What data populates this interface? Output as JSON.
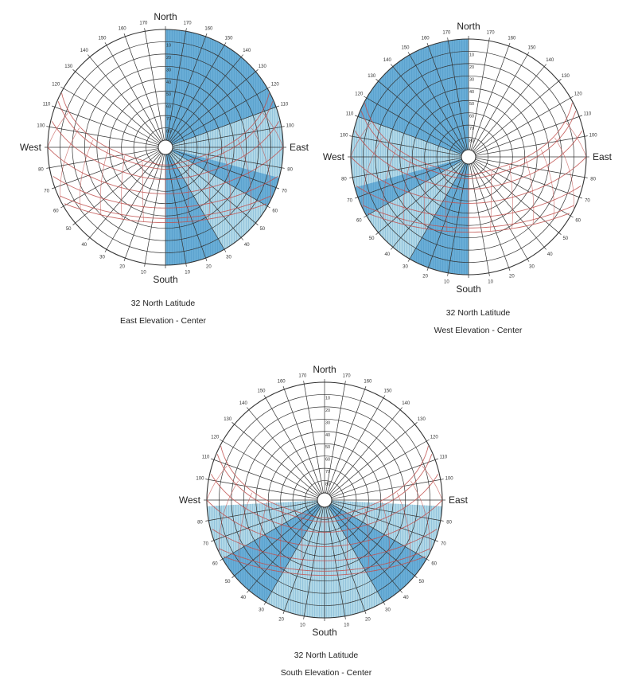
{
  "labels": {
    "north": "North",
    "south": "South",
    "east": "East",
    "west": "West"
  },
  "azimuth_labels": [
    "10",
    "20",
    "30",
    "40",
    "50",
    "60",
    "70",
    "80",
    "90",
    "100",
    "110",
    "120",
    "130",
    "140",
    "150",
    "160",
    "170"
  ],
  "altitude_labels": [
    "10",
    "20",
    "30",
    "40",
    "50",
    "60",
    "70",
    "80"
  ],
  "colors": {
    "grid": "#333333",
    "sun_path": "#c0504d",
    "shade_light": "#a9d4e4",
    "shade_dark": "#4f9fcf",
    "hatch": "#2d7fb8"
  },
  "diagrams": [
    {
      "id": "east",
      "latitude_label": "32  North Latitude",
      "elevation_label": "East Elevation - Center",
      "facing_azimuth": 90,
      "shading": [
        {
          "az_from": 0,
          "az_to": 70,
          "fill": "dark"
        },
        {
          "az_from": 70,
          "az_to": 105,
          "fill": "light"
        },
        {
          "az_from": 105,
          "az_to": 120,
          "fill": "dark"
        },
        {
          "az_from": 120,
          "az_to": 150,
          "fill": "light"
        },
        {
          "az_from": 150,
          "az_to": 180,
          "fill": "dark"
        }
      ]
    },
    {
      "id": "west",
      "latitude_label": "32  North Latitude",
      "elevation_label": "West Elevation - Center",
      "facing_azimuth": 270,
      "shading": [
        {
          "az_from": 180,
          "az_to": 210,
          "fill": "dark"
        },
        {
          "az_from": 210,
          "az_to": 240,
          "fill": "light"
        },
        {
          "az_from": 240,
          "az_to": 255,
          "fill": "dark"
        },
        {
          "az_from": 255,
          "az_to": 290,
          "fill": "light"
        },
        {
          "az_from": 290,
          "az_to": 360,
          "fill": "dark"
        }
      ]
    },
    {
      "id": "south",
      "latitude_label": "32  North Latitude",
      "elevation_label": "South Elevation - Center",
      "facing_azimuth": 180,
      "shading": [
        {
          "az_from": 93,
          "az_to": 120,
          "fill": "light"
        },
        {
          "az_from": 120,
          "az_to": 150,
          "fill": "dark"
        },
        {
          "az_from": 150,
          "az_to": 210,
          "fill": "light"
        },
        {
          "az_from": 210,
          "az_to": 240,
          "fill": "dark"
        },
        {
          "az_from": 240,
          "az_to": 267,
          "fill": "light"
        }
      ]
    }
  ]
}
